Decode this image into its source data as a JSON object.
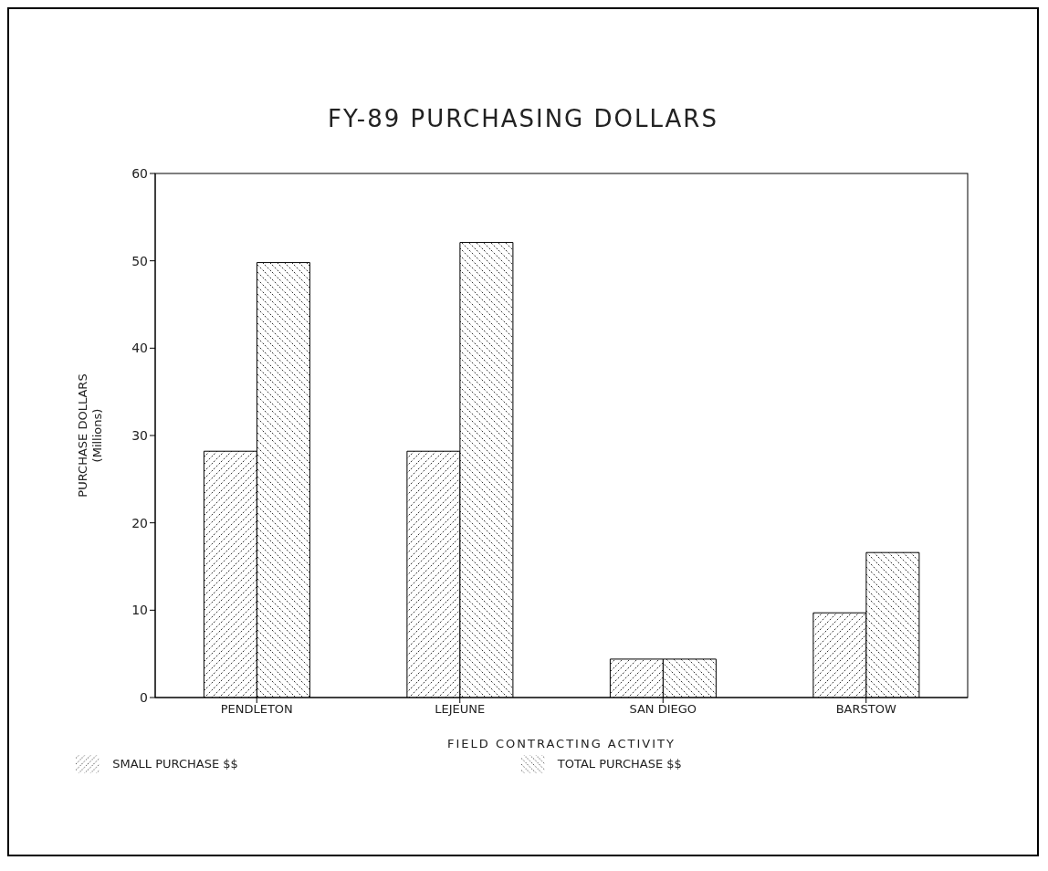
{
  "chart_data": {
    "type": "bar",
    "title": "FY-89 PURCHASING DOLLARS",
    "xlabel": "FIELD CONTRACTING ACTIVITY",
    "ylabel": "PURCHASE DOLLARS\n(Millions)",
    "categories": [
      "PENDLETON",
      "LEJEUNE",
      "SAN DIEGO",
      "BARSTOW"
    ],
    "series": [
      {
        "name": "SMALL PURCHASE $$",
        "color": "#000000",
        "values": [
          28.2,
          28.2,
          4.4,
          9.7
        ]
      },
      {
        "name": "TOTAL PURCHASE $$",
        "color": "#000000",
        "values": [
          49.8,
          52.1,
          4.4,
          16.6
        ]
      }
    ],
    "ylim": [
      0,
      60
    ],
    "yticks": [
      0,
      10,
      20,
      30,
      40,
      50,
      60
    ],
    "legend": "bottom"
  }
}
